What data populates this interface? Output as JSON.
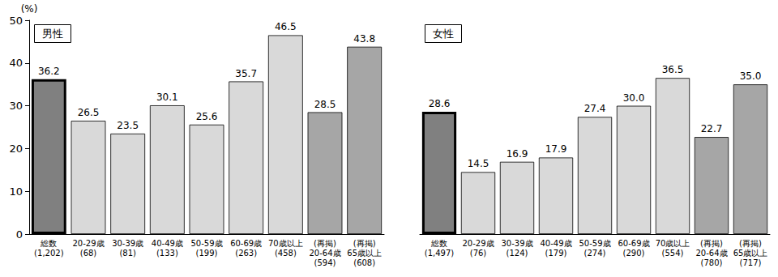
{
  "chart_data": [
    {
      "type": "bar",
      "title": "男性",
      "ylabel": "(%)",
      "categories": [
        "総数\n(1,202)",
        "20-29歳\n(68)",
        "30-39歳\n(81)",
        "40-49歳\n(133)",
        "50-59歳\n(199)",
        "60-69歳\n(263)",
        "70歳以上\n(458)",
        "(再掲)\n20-64歳\n(594)",
        "(再掲)\n65歳以上\n(608)"
      ],
      "values": [
        36.2,
        26.5,
        23.5,
        30.1,
        25.6,
        35.7,
        46.5,
        28.5,
        43.8
      ],
      "value_labels": [
        "36.2",
        "26.5",
        "23.5",
        "30.1",
        "25.6",
        "35.7",
        "46.5",
        "28.5",
        "43.8"
      ],
      "colors": [
        "#808080",
        "#d9d9d9",
        "#d9d9d9",
        "#d9d9d9",
        "#d9d9d9",
        "#d9d9d9",
        "#d9d9d9",
        "#a6a6a6",
        "#a6a6a6"
      ],
      "ylim": [
        0,
        50
      ],
      "yticks": [
        0,
        10,
        20,
        30,
        40,
        50
      ],
      "grid": false,
      "data_labels": true
    },
    {
      "type": "bar",
      "title": "女性",
      "categories": [
        "総数\n(1,497)",
        "20-29歳\n(76)",
        "30-39歳\n(124)",
        "40-49歳\n(179)",
        "50-59歳\n(274)",
        "60-69歳\n(290)",
        "70歳以上\n(554)",
        "(再掲)\n20-64歳\n(780)",
        "(再掲)\n65歳以上\n(717)"
      ],
      "values": [
        28.6,
        14.5,
        16.9,
        17.9,
        27.4,
        30.0,
        36.5,
        22.7,
        35.0
      ],
      "value_labels": [
        "28.6",
        "14.5",
        "16.9",
        "17.9",
        "27.4",
        "30.0",
        "36.5",
        "22.7",
        "35.0"
      ],
      "colors": [
        "#808080",
        "#d9d9d9",
        "#d9d9d9",
        "#d9d9d9",
        "#d9d9d9",
        "#d9d9d9",
        "#d9d9d9",
        "#a6a6a6",
        "#a6a6a6"
      ],
      "ylim": [
        0,
        50
      ],
      "grid": false,
      "data_labels": true,
      "tick_labels": "x"
    }
  ]
}
